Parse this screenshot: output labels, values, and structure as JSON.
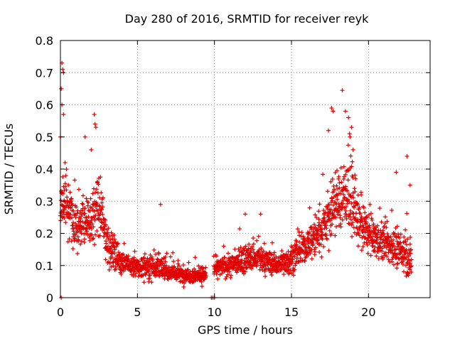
{
  "chart_data": {
    "type": "scatter",
    "title": "Day 280 of 2016, SRMTID for receiver reyk",
    "xlabel": "GPS time / hours",
    "ylabel": "SRMTID / TECUs",
    "xlim": [
      0,
      24
    ],
    "ylim": [
      0,
      0.8
    ],
    "xticks": [
      0,
      5,
      10,
      15,
      20
    ],
    "yticks": [
      0,
      0.1,
      0.2,
      0.3,
      0.4,
      0.5,
      0.6,
      0.7,
      0.8
    ],
    "grid": true,
    "marker": "plus",
    "color": "#e00000",
    "series": [
      {
        "name": "SRMTID",
        "envelope": [
          {
            "x": 0.0,
            "mean": 0.27,
            "spread": 0.1
          },
          {
            "x": 0.3,
            "mean": 0.3,
            "spread": 0.12
          },
          {
            "x": 1.0,
            "mean": 0.22,
            "spread": 0.1
          },
          {
            "x": 2.0,
            "mean": 0.25,
            "spread": 0.1
          },
          {
            "x": 2.5,
            "mean": 0.28,
            "spread": 0.12
          },
          {
            "x": 3.2,
            "mean": 0.15,
            "spread": 0.07
          },
          {
            "x": 4.0,
            "mean": 0.11,
            "spread": 0.04
          },
          {
            "x": 5.0,
            "mean": 0.09,
            "spread": 0.04
          },
          {
            "x": 6.0,
            "mean": 0.1,
            "spread": 0.05
          },
          {
            "x": 7.0,
            "mean": 0.08,
            "spread": 0.03
          },
          {
            "x": 8.0,
            "mean": 0.07,
            "spread": 0.03
          },
          {
            "x": 9.3,
            "mean": 0.07,
            "spread": 0.03
          },
          {
            "x": 10.0,
            "mean": 0.09,
            "spread": 0.03
          },
          {
            "x": 11.0,
            "mean": 0.1,
            "spread": 0.04
          },
          {
            "x": 12.0,
            "mean": 0.12,
            "spread": 0.05
          },
          {
            "x": 13.0,
            "mean": 0.12,
            "spread": 0.05
          },
          {
            "x": 14.0,
            "mean": 0.1,
            "spread": 0.04
          },
          {
            "x": 15.0,
            "mean": 0.12,
            "spread": 0.05
          },
          {
            "x": 16.0,
            "mean": 0.16,
            "spread": 0.06
          },
          {
            "x": 17.0,
            "mean": 0.22,
            "spread": 0.1
          },
          {
            "x": 18.0,
            "mean": 0.3,
            "spread": 0.12
          },
          {
            "x": 18.7,
            "mean": 0.32,
            "spread": 0.14
          },
          {
            "x": 19.5,
            "mean": 0.22,
            "spread": 0.08
          },
          {
            "x": 20.5,
            "mean": 0.18,
            "spread": 0.07
          },
          {
            "x": 21.5,
            "mean": 0.16,
            "spread": 0.07
          },
          {
            "x": 22.8,
            "mean": 0.12,
            "spread": 0.06
          }
        ],
        "highlights": [
          {
            "x": 0.1,
            "y": 0.73
          },
          {
            "x": 0.15,
            "y": 0.71
          },
          {
            "x": 0.2,
            "y": 0.7
          },
          {
            "x": 0.05,
            "y": 0.65
          },
          {
            "x": 0.1,
            "y": 0.6
          },
          {
            "x": 0.2,
            "y": 0.57
          },
          {
            "x": 0.0,
            "y": 0.5
          },
          {
            "x": 0.3,
            "y": 0.42
          },
          {
            "x": 2.2,
            "y": 0.57
          },
          {
            "x": 2.25,
            "y": 0.54
          },
          {
            "x": 2.3,
            "y": 0.53
          },
          {
            "x": 1.6,
            "y": 0.5
          },
          {
            "x": 2.0,
            "y": 0.46
          },
          {
            "x": 6.5,
            "y": 0.29
          },
          {
            "x": 12.0,
            "y": 0.26
          },
          {
            "x": 13.0,
            "y": 0.26
          },
          {
            "x": 17.6,
            "y": 0.59
          },
          {
            "x": 17.7,
            "y": 0.58
          },
          {
            "x": 18.3,
            "y": 0.645
          },
          {
            "x": 18.5,
            "y": 0.58
          },
          {
            "x": 18.7,
            "y": 0.56
          },
          {
            "x": 18.9,
            "y": 0.53
          },
          {
            "x": 18.8,
            "y": 0.5
          },
          {
            "x": 17.4,
            "y": 0.52
          },
          {
            "x": 19.0,
            "y": 0.46
          },
          {
            "x": 22.5,
            "y": 0.44
          },
          {
            "x": 21.8,
            "y": 0.39
          },
          {
            "x": 22.7,
            "y": 0.35
          },
          {
            "x": 0.05,
            "y": 0.0
          },
          {
            "x": 9.8,
            "y": 0.0
          },
          {
            "x": 9.9,
            "y": 0.0
          },
          {
            "x": 10.0,
            "y": 0.0
          }
        ]
      }
    ]
  }
}
